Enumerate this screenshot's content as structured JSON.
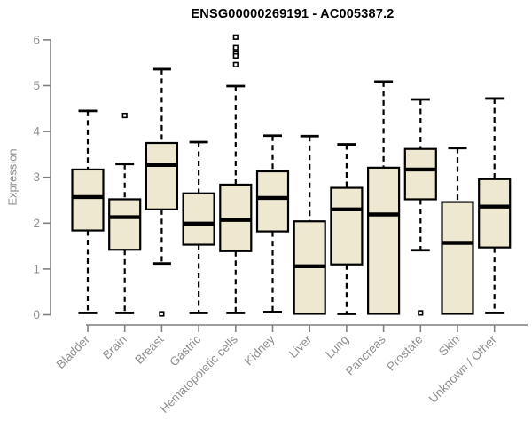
{
  "chart_data": {
    "type": "boxplot",
    "title": "ENSG00000269191 - AC005387.2",
    "ylabel": "Expression",
    "xlabel": "",
    "ylim": [
      0,
      6
    ],
    "yticks": [
      0,
      1,
      2,
      3,
      4,
      5,
      6
    ],
    "grid": false,
    "legend": null,
    "categories": [
      "Bladder",
      "Brain",
      "Breast",
      "Gastric",
      "Hematopoietic cells",
      "Kidney",
      "Liver",
      "Lung",
      "Pancreas",
      "Prostate",
      "Skin",
      "Unknown / Other"
    ],
    "series": [
      {
        "category": "Bladder",
        "whisker_low": 0.04,
        "q1": 1.84,
        "median": 2.57,
        "q3": 3.17,
        "whisker_high": 4.45,
        "outliers": []
      },
      {
        "category": "Brain",
        "whisker_low": 0.04,
        "q1": 1.42,
        "median": 2.13,
        "q3": 2.52,
        "whisker_high": 3.29,
        "outliers": [
          4.35
        ]
      },
      {
        "category": "Breast",
        "whisker_low": 1.12,
        "q1": 2.3,
        "median": 3.27,
        "q3": 3.75,
        "whisker_high": 5.36,
        "outliers": [
          0.02
        ]
      },
      {
        "category": "Gastric",
        "whisker_low": 0.04,
        "q1": 1.53,
        "median": 1.99,
        "q3": 2.65,
        "whisker_high": 3.77,
        "outliers": []
      },
      {
        "category": "Hematopoietic cells",
        "whisker_low": 0.04,
        "q1": 1.39,
        "median": 2.07,
        "q3": 2.84,
        "whisker_high": 4.99,
        "outliers": [
          6.06,
          5.83,
          5.71,
          5.65,
          5.46
        ]
      },
      {
        "category": "Kidney",
        "whisker_low": 0.06,
        "q1": 1.82,
        "median": 2.55,
        "q3": 3.13,
        "whisker_high": 3.91,
        "outliers": []
      },
      {
        "category": "Liver",
        "whisker_low": 0.02,
        "q1": 0.02,
        "median": 1.06,
        "q3": 2.04,
        "whisker_high": 3.9,
        "outliers": []
      },
      {
        "category": "Lung",
        "whisker_low": 0.02,
        "q1": 1.1,
        "median": 2.3,
        "q3": 2.77,
        "whisker_high": 3.72,
        "outliers": []
      },
      {
        "category": "Pancreas",
        "whisker_low": 0.02,
        "q1": 0.02,
        "median": 2.19,
        "q3": 3.21,
        "whisker_high": 5.09,
        "outliers": []
      },
      {
        "category": "Prostate",
        "whisker_low": 1.41,
        "q1": 2.52,
        "median": 3.17,
        "q3": 3.62,
        "whisker_high": 4.7,
        "outliers": [
          0.04
        ]
      },
      {
        "category": "Skin",
        "whisker_low": 0.02,
        "q1": 0.02,
        "median": 1.57,
        "q3": 2.46,
        "whisker_high": 3.64,
        "outliers": []
      },
      {
        "category": "Unknown / Other",
        "whisker_low": 0.04,
        "q1": 1.47,
        "median": 2.36,
        "q3": 2.96,
        "whisker_high": 4.72,
        "outliers": []
      }
    ],
    "colors": {
      "box_fill": "#EDE8CF",
      "box_border": "#000000",
      "median": "#000000",
      "whisker": "#000000",
      "outlier": "#000000",
      "axis": "#7f7f7f",
      "tick_label": "#8e8e8e",
      "title": "#000000",
      "background": "#FFFFFF"
    }
  }
}
